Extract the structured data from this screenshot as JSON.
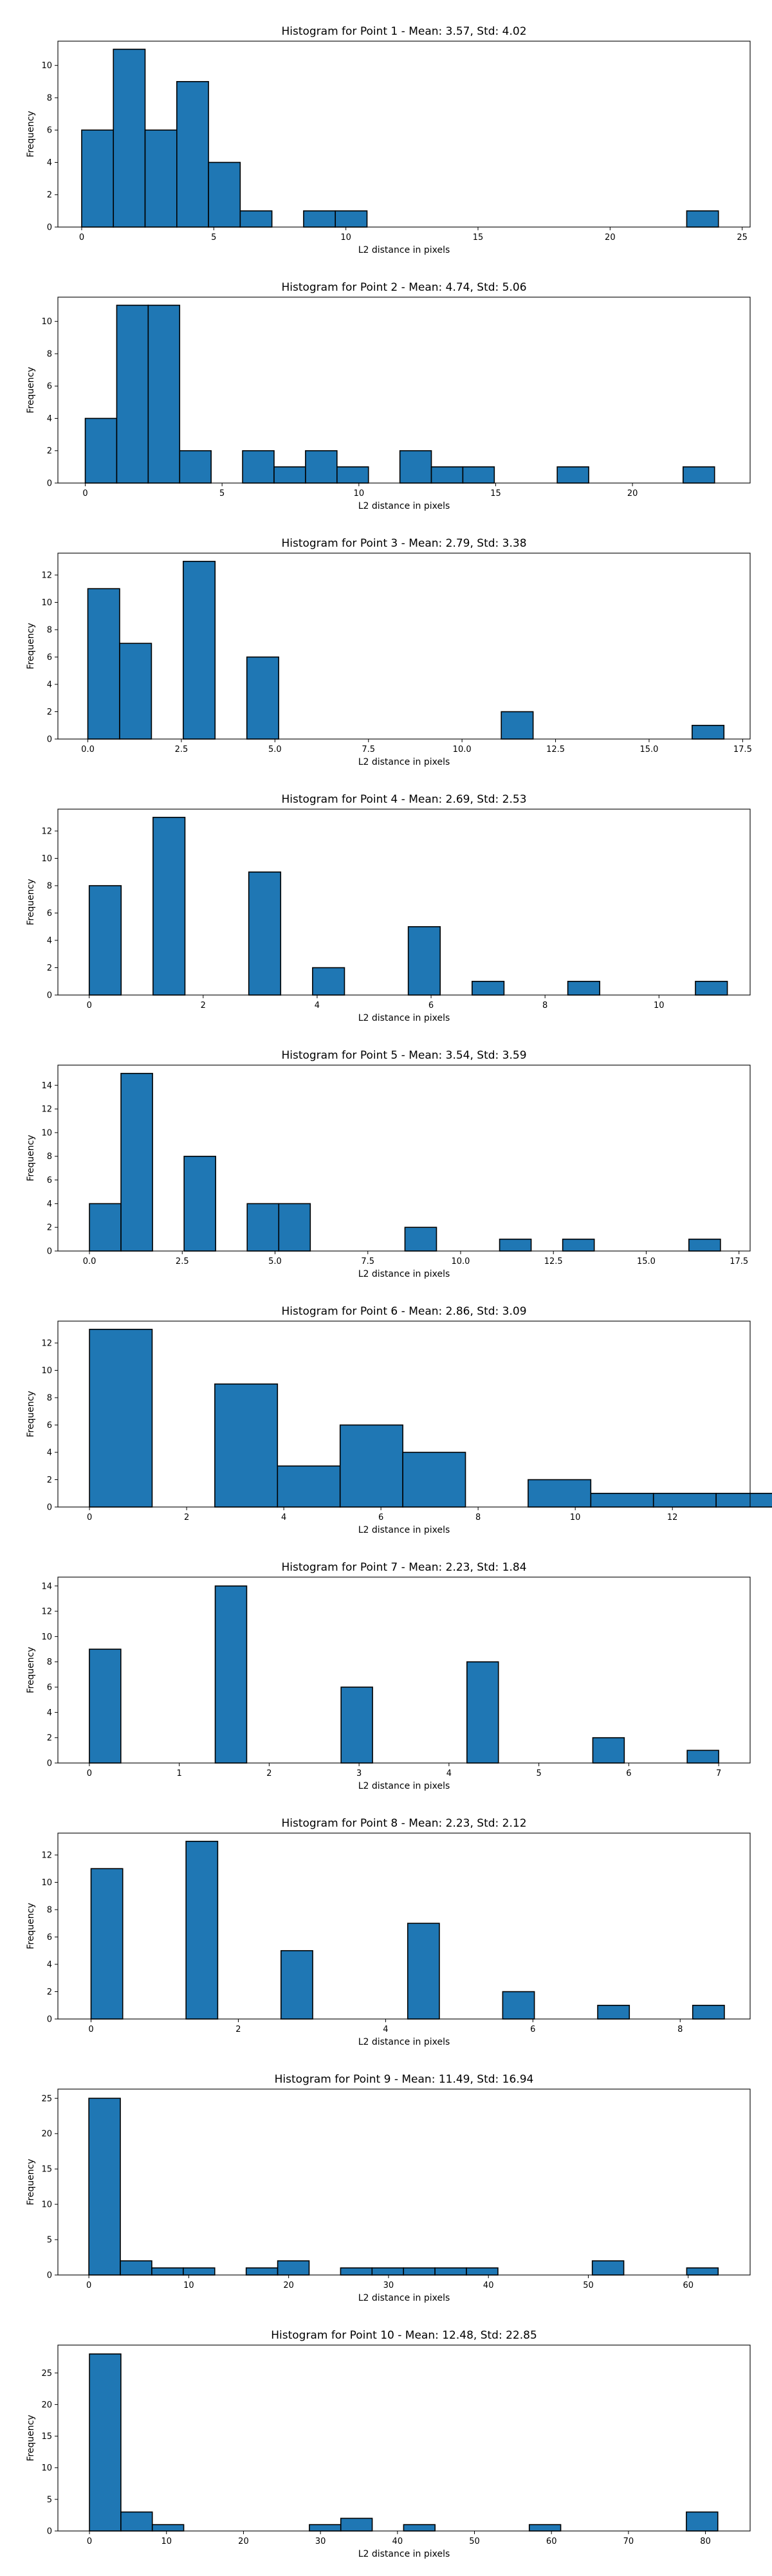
{
  "chart_data": [
    {
      "type": "bar",
      "title": "Histogram for Point 1 - Mean: 3.57, Std: 4.02",
      "xlabel": "L2 distance in pixels",
      "ylabel": "Frequency",
      "x_range": [
        -0.9,
        25.3
      ],
      "ylim": [
        0,
        11.5
      ],
      "xticks": [
        0,
        5,
        10,
        15,
        20,
        25
      ],
      "xtick_labels": [
        "0",
        "5",
        "10",
        "15",
        "20",
        "25"
      ],
      "yticks": [
        0,
        2,
        4,
        6,
        8,
        10
      ],
      "bins": [
        [
          0,
          1.2,
          6
        ],
        [
          1.2,
          2.4,
          11
        ],
        [
          2.4,
          3.6,
          6
        ],
        [
          3.6,
          4.8,
          9
        ],
        [
          4.8,
          6.0,
          4
        ],
        [
          6.0,
          7.2,
          1
        ],
        [
          8.4,
          9.6,
          1
        ],
        [
          9.6,
          10.8,
          1
        ],
        [
          22.9,
          24.1,
          1
        ]
      ],
      "grid": false
    },
    {
      "type": "bar",
      "title": "Histogram for Point 2 - Mean: 4.74, Std: 5.06",
      "xlabel": "L2 distance in pixels",
      "ylabel": "Frequency",
      "x_range": [
        -1.0,
        24.3
      ],
      "ylim": [
        0,
        11.5
      ],
      "xticks": [
        0,
        5,
        10,
        15,
        20
      ],
      "xtick_labels": [
        "0",
        "5",
        "10",
        "15",
        "20"
      ],
      "yticks": [
        0,
        2,
        4,
        6,
        8,
        10
      ],
      "bins": [
        [
          0,
          1.15,
          4
        ],
        [
          1.15,
          2.3,
          11
        ],
        [
          2.3,
          3.45,
          11
        ],
        [
          3.45,
          4.6,
          2
        ],
        [
          5.75,
          6.9,
          2
        ],
        [
          6.9,
          8.05,
          1
        ],
        [
          8.05,
          9.2,
          2
        ],
        [
          9.2,
          10.35,
          1
        ],
        [
          11.5,
          12.65,
          2
        ],
        [
          12.65,
          13.8,
          1
        ],
        [
          13.8,
          14.95,
          1
        ],
        [
          17.25,
          18.4,
          1
        ],
        [
          21.85,
          23.0,
          1
        ]
      ],
      "grid": false
    },
    {
      "type": "bar",
      "title": "Histogram for Point 3 - Mean: 2.79, Std: 3.38",
      "xlabel": "L2 distance in pixels",
      "ylabel": "Frequency",
      "x_range": [
        -0.8,
        17.7
      ],
      "ylim": [
        0,
        13.6
      ],
      "xticks": [
        0,
        2.5,
        5,
        7.5,
        10,
        12.5,
        15,
        17.5
      ],
      "xtick_labels": [
        "0.0",
        "2.5",
        "5.0",
        "7.5",
        "10.0",
        "12.5",
        "15.0",
        "17.5"
      ],
      "yticks": [
        0,
        2,
        4,
        6,
        8,
        10,
        12
      ],
      "bins": [
        [
          0,
          0.85,
          11
        ],
        [
          0.85,
          1.7,
          7
        ],
        [
          2.55,
          3.4,
          13
        ],
        [
          4.25,
          5.1,
          6
        ],
        [
          11.05,
          11.9,
          2
        ],
        [
          16.15,
          17.0,
          1
        ]
      ],
      "grid": false
    },
    {
      "type": "bar",
      "title": "Histogram for Point 4 - Mean: 2.69, Std: 2.53",
      "xlabel": "L2 distance in pixels",
      "ylabel": "Frequency",
      "x_range": [
        -0.55,
        11.6
      ],
      "ylim": [
        0,
        13.6
      ],
      "xticks": [
        0,
        2,
        4,
        6,
        8,
        10
      ],
      "xtick_labels": [
        "0",
        "2",
        "4",
        "6",
        "8",
        "10"
      ],
      "yticks": [
        0,
        2,
        4,
        6,
        8,
        10,
        12
      ],
      "bins": [
        [
          0,
          0.56,
          8
        ],
        [
          1.12,
          1.68,
          13
        ],
        [
          2.8,
          3.36,
          9
        ],
        [
          3.92,
          4.48,
          2
        ],
        [
          5.6,
          6.16,
          5
        ],
        [
          6.72,
          7.28,
          1
        ],
        [
          8.4,
          8.96,
          1
        ],
        [
          10.64,
          11.2,
          1
        ]
      ],
      "grid": false
    },
    {
      "type": "bar",
      "title": "Histogram for Point 5 - Mean: 3.54, Std: 3.59",
      "xlabel": "L2 distance in pixels",
      "ylabel": "Frequency",
      "x_range": [
        -0.85,
        17.8
      ],
      "ylim": [
        0,
        15.7
      ],
      "xticks": [
        0,
        2.5,
        5,
        7.5,
        10,
        12.5,
        15,
        17.5
      ],
      "xtick_labels": [
        "0.0",
        "2.5",
        "5.0",
        "7.5",
        "10.0",
        "12.5",
        "15.0",
        "17.5"
      ],
      "yticks": [
        0,
        2,
        4,
        6,
        8,
        10,
        12,
        14
      ],
      "bins": [
        [
          0,
          0.85,
          4
        ],
        [
          0.85,
          1.7,
          15
        ],
        [
          2.55,
          3.4,
          8
        ],
        [
          4.25,
          5.1,
          4
        ],
        [
          5.1,
          5.95,
          4
        ],
        [
          8.5,
          9.35,
          2
        ],
        [
          11.05,
          11.9,
          1
        ],
        [
          12.75,
          13.6,
          1
        ],
        [
          16.15,
          17.0,
          1
        ]
      ],
      "grid": false
    },
    {
      "type": "bar",
      "title": "Histogram for Point 6 - Mean: 2.86, Std: 3.09",
      "xlabel": "L2 distance in pixels",
      "ylabel": "Frequency",
      "x_range": [
        -0.65,
        13.6
      ],
      "ylim": [
        0,
        13.6
      ],
      "xticks": [
        0,
        2,
        4,
        6,
        8,
        10,
        12
      ],
      "xtick_labels": [
        "0",
        "2",
        "4",
        "6",
        "8",
        "10",
        "12"
      ],
      "yticks": [
        0,
        2,
        4,
        6,
        8,
        10,
        12
      ],
      "bins": [
        [
          0,
          1.29,
          13
        ],
        [
          2.58,
          3.87,
          9
        ],
        [
          3.87,
          5.16,
          3
        ],
        [
          5.16,
          6.45,
          6
        ],
        [
          6.45,
          7.74,
          4
        ],
        [
          9.03,
          10.32,
          2
        ],
        [
          10.32,
          11.61,
          1
        ],
        [
          11.61,
          12.9,
          1
        ],
        [
          12.9,
          14.19,
          1
        ]
      ],
      "grid": false
    },
    {
      "type": "bar",
      "title": "Histogram for Point 7 - Mean: 2.23, Std: 1.84",
      "xlabel": "L2 distance in pixels",
      "ylabel": "Frequency",
      "x_range": [
        -0.35,
        7.35
      ],
      "ylim": [
        0,
        14.7
      ],
      "xticks": [
        0,
        1,
        2,
        3,
        4,
        5,
        6,
        7
      ],
      "xtick_labels": [
        "0",
        "1",
        "2",
        "3",
        "4",
        "5",
        "6",
        "7"
      ],
      "yticks": [
        0,
        2,
        4,
        6,
        8,
        10,
        12,
        14
      ],
      "bins": [
        [
          0,
          0.35,
          9
        ],
        [
          1.4,
          1.75,
          14
        ],
        [
          2.8,
          3.15,
          6
        ],
        [
          4.2,
          4.55,
          8
        ],
        [
          5.6,
          5.95,
          2
        ],
        [
          6.65,
          7.0,
          1
        ]
      ],
      "grid": false
    },
    {
      "type": "bar",
      "title": "Histogram for Point 8 - Mean: 2.23, Std: 2.12",
      "xlabel": "L2 distance in pixels",
      "ylabel": "Frequency",
      "x_range": [
        -0.45,
        8.95
      ],
      "ylim": [
        0,
        13.6
      ],
      "xticks": [
        0,
        2,
        4,
        6,
        8
      ],
      "xtick_labels": [
        "0",
        "2",
        "4",
        "6",
        "8"
      ],
      "yticks": [
        0,
        2,
        4,
        6,
        8,
        10,
        12
      ],
      "bins": [
        [
          0,
          0.43,
          11
        ],
        [
          1.29,
          1.72,
          13
        ],
        [
          2.58,
          3.01,
          5
        ],
        [
          4.3,
          4.73,
          7
        ],
        [
          5.59,
          6.02,
          2
        ],
        [
          6.88,
          7.31,
          1
        ],
        [
          8.17,
          8.6,
          1
        ]
      ],
      "grid": false
    },
    {
      "type": "bar",
      "title": "Histogram for Point 9 - Mean: 11.49, Std: 16.94",
      "xlabel": "L2 distance in pixels",
      "ylabel": "Frequency",
      "x_range": [
        -3.1,
        66.2
      ],
      "ylim": [
        0,
        26.3
      ],
      "xticks": [
        0,
        10,
        20,
        30,
        40,
        50,
        60
      ],
      "xtick_labels": [
        "0",
        "10",
        "20",
        "30",
        "40",
        "50",
        "60"
      ],
      "yticks": [
        0,
        5,
        10,
        15,
        20,
        25
      ],
      "bins": [
        [
          0,
          3.15,
          25
        ],
        [
          3.15,
          6.3,
          2
        ],
        [
          6.3,
          9.45,
          1
        ],
        [
          9.45,
          12.6,
          1
        ],
        [
          15.75,
          18.9,
          1
        ],
        [
          18.9,
          22.05,
          2
        ],
        [
          25.2,
          28.35,
          1
        ],
        [
          28.35,
          31.5,
          1
        ],
        [
          31.5,
          34.65,
          1
        ],
        [
          34.65,
          37.8,
          1
        ],
        [
          37.8,
          40.95,
          1
        ],
        [
          50.4,
          53.55,
          2
        ],
        [
          59.85,
          63.0,
          1
        ]
      ],
      "grid": false
    },
    {
      "type": "bar",
      "title": "Histogram for Point 10 - Mean: 12.48, Std: 22.85",
      "xlabel": "L2 distance in pixels",
      "ylabel": "Frequency",
      "x_range": [
        -4.1,
        85.8
      ],
      "ylim": [
        0,
        29.4
      ],
      "xticks": [
        0,
        10,
        20,
        30,
        40,
        50,
        60,
        70,
        80
      ],
      "xtick_labels": [
        "0",
        "10",
        "20",
        "30",
        "40",
        "50",
        "60",
        "70",
        "80"
      ],
      "yticks": [
        0,
        5,
        10,
        15,
        20,
        25
      ],
      "bins": [
        [
          0,
          4.08,
          28
        ],
        [
          4.08,
          8.16,
          3
        ],
        [
          8.16,
          12.24,
          1
        ],
        [
          28.56,
          32.64,
          1
        ],
        [
          32.64,
          36.72,
          2
        ],
        [
          40.8,
          44.88,
          1
        ],
        [
          57.12,
          61.2,
          1
        ],
        [
          77.52,
          81.6,
          3
        ]
      ],
      "grid": false
    }
  ]
}
